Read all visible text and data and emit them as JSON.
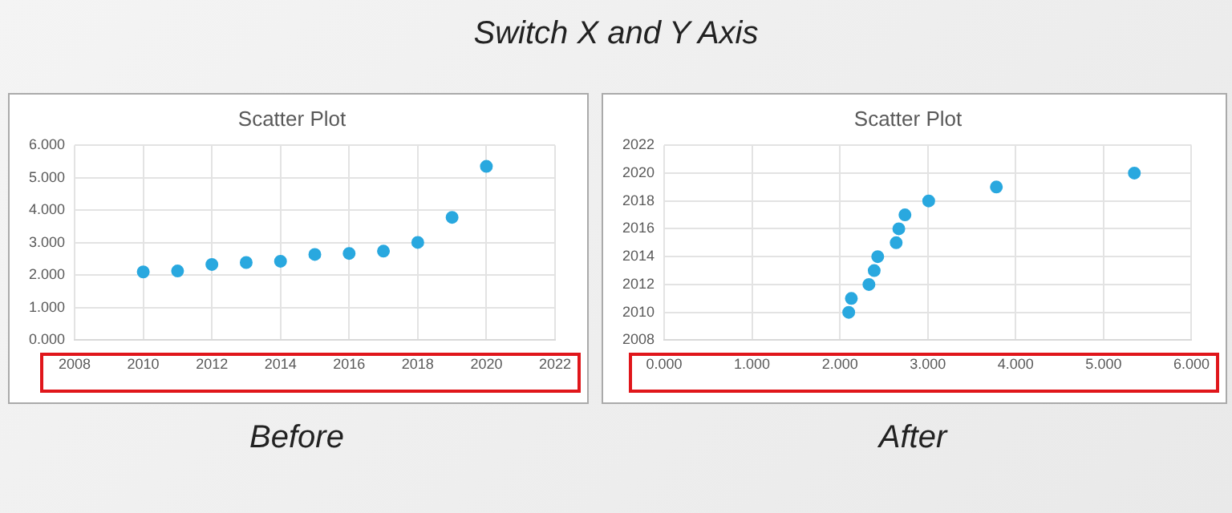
{
  "chart_data": [
    {
      "type": "scatter",
      "title": "Scatter Plot",
      "annotations": [
        "Switch X and Y Axis",
        "Before"
      ],
      "x": [
        2010,
        2011,
        2012,
        2013,
        2014,
        2015,
        2016,
        2017,
        2018,
        2019,
        2020
      ],
      "values": [
        2.1,
        2.13,
        2.33,
        2.39,
        2.43,
        2.64,
        2.67,
        2.74,
        3.01,
        3.78,
        5.35
      ],
      "color": "#29a8df",
      "marker": "circle",
      "grid": true,
      "legend": false,
      "xlim": [
        2008,
        2022
      ],
      "xticks": [
        2008,
        2010,
        2012,
        2014,
        2016,
        2018,
        2020,
        2022
      ],
      "ylim": [
        0,
        6
      ],
      "yticks": [
        {
          "value": 0,
          "label": "0.000"
        },
        {
          "value": 1,
          "label": "1.000"
        },
        {
          "value": 2,
          "label": "2.000"
        },
        {
          "value": 3,
          "label": "3.000"
        },
        {
          "value": 4,
          "label": "4.000"
        },
        {
          "value": 5,
          "label": "5.000"
        },
        {
          "value": 6,
          "label": "6.000"
        }
      ]
    },
    {
      "type": "scatter",
      "title": "Scatter Plot",
      "annotations": [
        "After"
      ],
      "x": [
        2.1,
        2.13,
        2.33,
        2.39,
        2.43,
        2.64,
        2.67,
        2.74,
        3.01,
        3.78,
        5.35
      ],
      "values": [
        2010,
        2011,
        2012,
        2013,
        2014,
        2015,
        2016,
        2017,
        2018,
        2019,
        2020
      ],
      "color": "#29a8df",
      "marker": "circle",
      "grid": true,
      "legend": false,
      "xlim": [
        0,
        6
      ],
      "xticks": [
        {
          "value": 0,
          "label": "0.000"
        },
        {
          "value": 1,
          "label": "1.000"
        },
        {
          "value": 2,
          "label": "2.000"
        },
        {
          "value": 3,
          "label": "3.000"
        },
        {
          "value": 4,
          "label": "4.000"
        },
        {
          "value": 5,
          "label": "5.000"
        },
        {
          "value": 6,
          "label": "6.000"
        }
      ],
      "ylim": [
        2008,
        2022
      ],
      "yticks": [
        2008,
        2010,
        2012,
        2014,
        2016,
        2018,
        2020,
        2022
      ]
    }
  ]
}
